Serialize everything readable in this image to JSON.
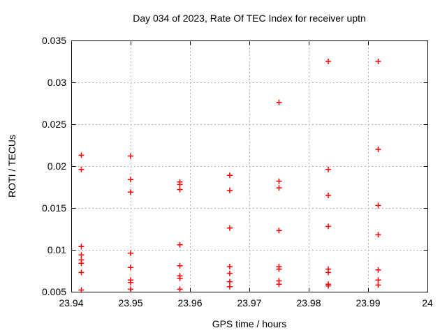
{
  "chart_data": {
    "type": "scatter",
    "title": "Day 034 of 2023, Rate Of TEC Index for receiver uptn",
    "xlabel": "GPS time / hours",
    "ylabel": "ROTI / TECUs",
    "xlim": [
      23.94,
      24
    ],
    "ylim": [
      0.005,
      0.035
    ],
    "xticks": [
      23.94,
      23.95,
      23.96,
      23.97,
      23.98,
      23.99,
      24
    ],
    "xtick_labels": [
      "23.94",
      "23.95",
      "23.96",
      "23.97",
      "23.98",
      "23.99",
      "24"
    ],
    "yticks": [
      0.005,
      0.01,
      0.015,
      0.02,
      0.025,
      0.03,
      0.035
    ],
    "ytick_labels": [
      "0.005",
      "0.01",
      "0.015",
      "0.02",
      "0.025",
      "0.03",
      "0.035"
    ],
    "grid": true,
    "legend": "none",
    "marker": "plus",
    "colors": {
      "marker": "#ff0000",
      "grid": "#b3b3b3",
      "axis": "#000000",
      "background": "#ffffff"
    },
    "series": [
      {
        "name": "ROTI",
        "points": [
          [
            23.9417,
            0.0213
          ],
          [
            23.9417,
            0.0196
          ],
          [
            23.9417,
            0.0104
          ],
          [
            23.9417,
            0.0094
          ],
          [
            23.9417,
            0.0088
          ],
          [
            23.9417,
            0.0084
          ],
          [
            23.9417,
            0.0073
          ],
          [
            23.9417,
            0.0052
          ],
          [
            23.95,
            0.0212
          ],
          [
            23.95,
            0.0184
          ],
          [
            23.95,
            0.0169
          ],
          [
            23.95,
            0.0096
          ],
          [
            23.95,
            0.0079
          ],
          [
            23.95,
            0.0064
          ],
          [
            23.95,
            0.0061
          ],
          [
            23.95,
            0.0053
          ],
          [
            23.9583,
            0.0181
          ],
          [
            23.9583,
            0.0178
          ],
          [
            23.9583,
            0.0172
          ],
          [
            23.9583,
            0.0106
          ],
          [
            23.9583,
            0.0081
          ],
          [
            23.9583,
            0.0069
          ],
          [
            23.9583,
            0.0066
          ],
          [
            23.9583,
            0.0053
          ],
          [
            23.9667,
            0.0189
          ],
          [
            23.9667,
            0.0171
          ],
          [
            23.9667,
            0.0126
          ],
          [
            23.9667,
            0.008
          ],
          [
            23.9667,
            0.0072
          ],
          [
            23.9667,
            0.0062
          ],
          [
            23.9667,
            0.0056
          ],
          [
            23.975,
            0.0276
          ],
          [
            23.975,
            0.0182
          ],
          [
            23.975,
            0.0174
          ],
          [
            23.975,
            0.0123
          ],
          [
            23.975,
            0.008
          ],
          [
            23.975,
            0.0077
          ],
          [
            23.975,
            0.0063
          ],
          [
            23.975,
            0.0059
          ],
          [
            23.9833,
            0.0325
          ],
          [
            23.9833,
            0.0196
          ],
          [
            23.9833,
            0.0165
          ],
          [
            23.9833,
            0.0128
          ],
          [
            23.9833,
            0.0077
          ],
          [
            23.9833,
            0.0073
          ],
          [
            23.9833,
            0.0059
          ],
          [
            23.9833,
            0.0057
          ],
          [
            23.9917,
            0.0325
          ],
          [
            23.9917,
            0.022
          ],
          [
            23.9917,
            0.0153
          ],
          [
            23.9917,
            0.0118
          ],
          [
            23.9917,
            0.0076
          ],
          [
            23.9917,
            0.0064
          ],
          [
            23.9917,
            0.0058
          ]
        ]
      }
    ]
  }
}
